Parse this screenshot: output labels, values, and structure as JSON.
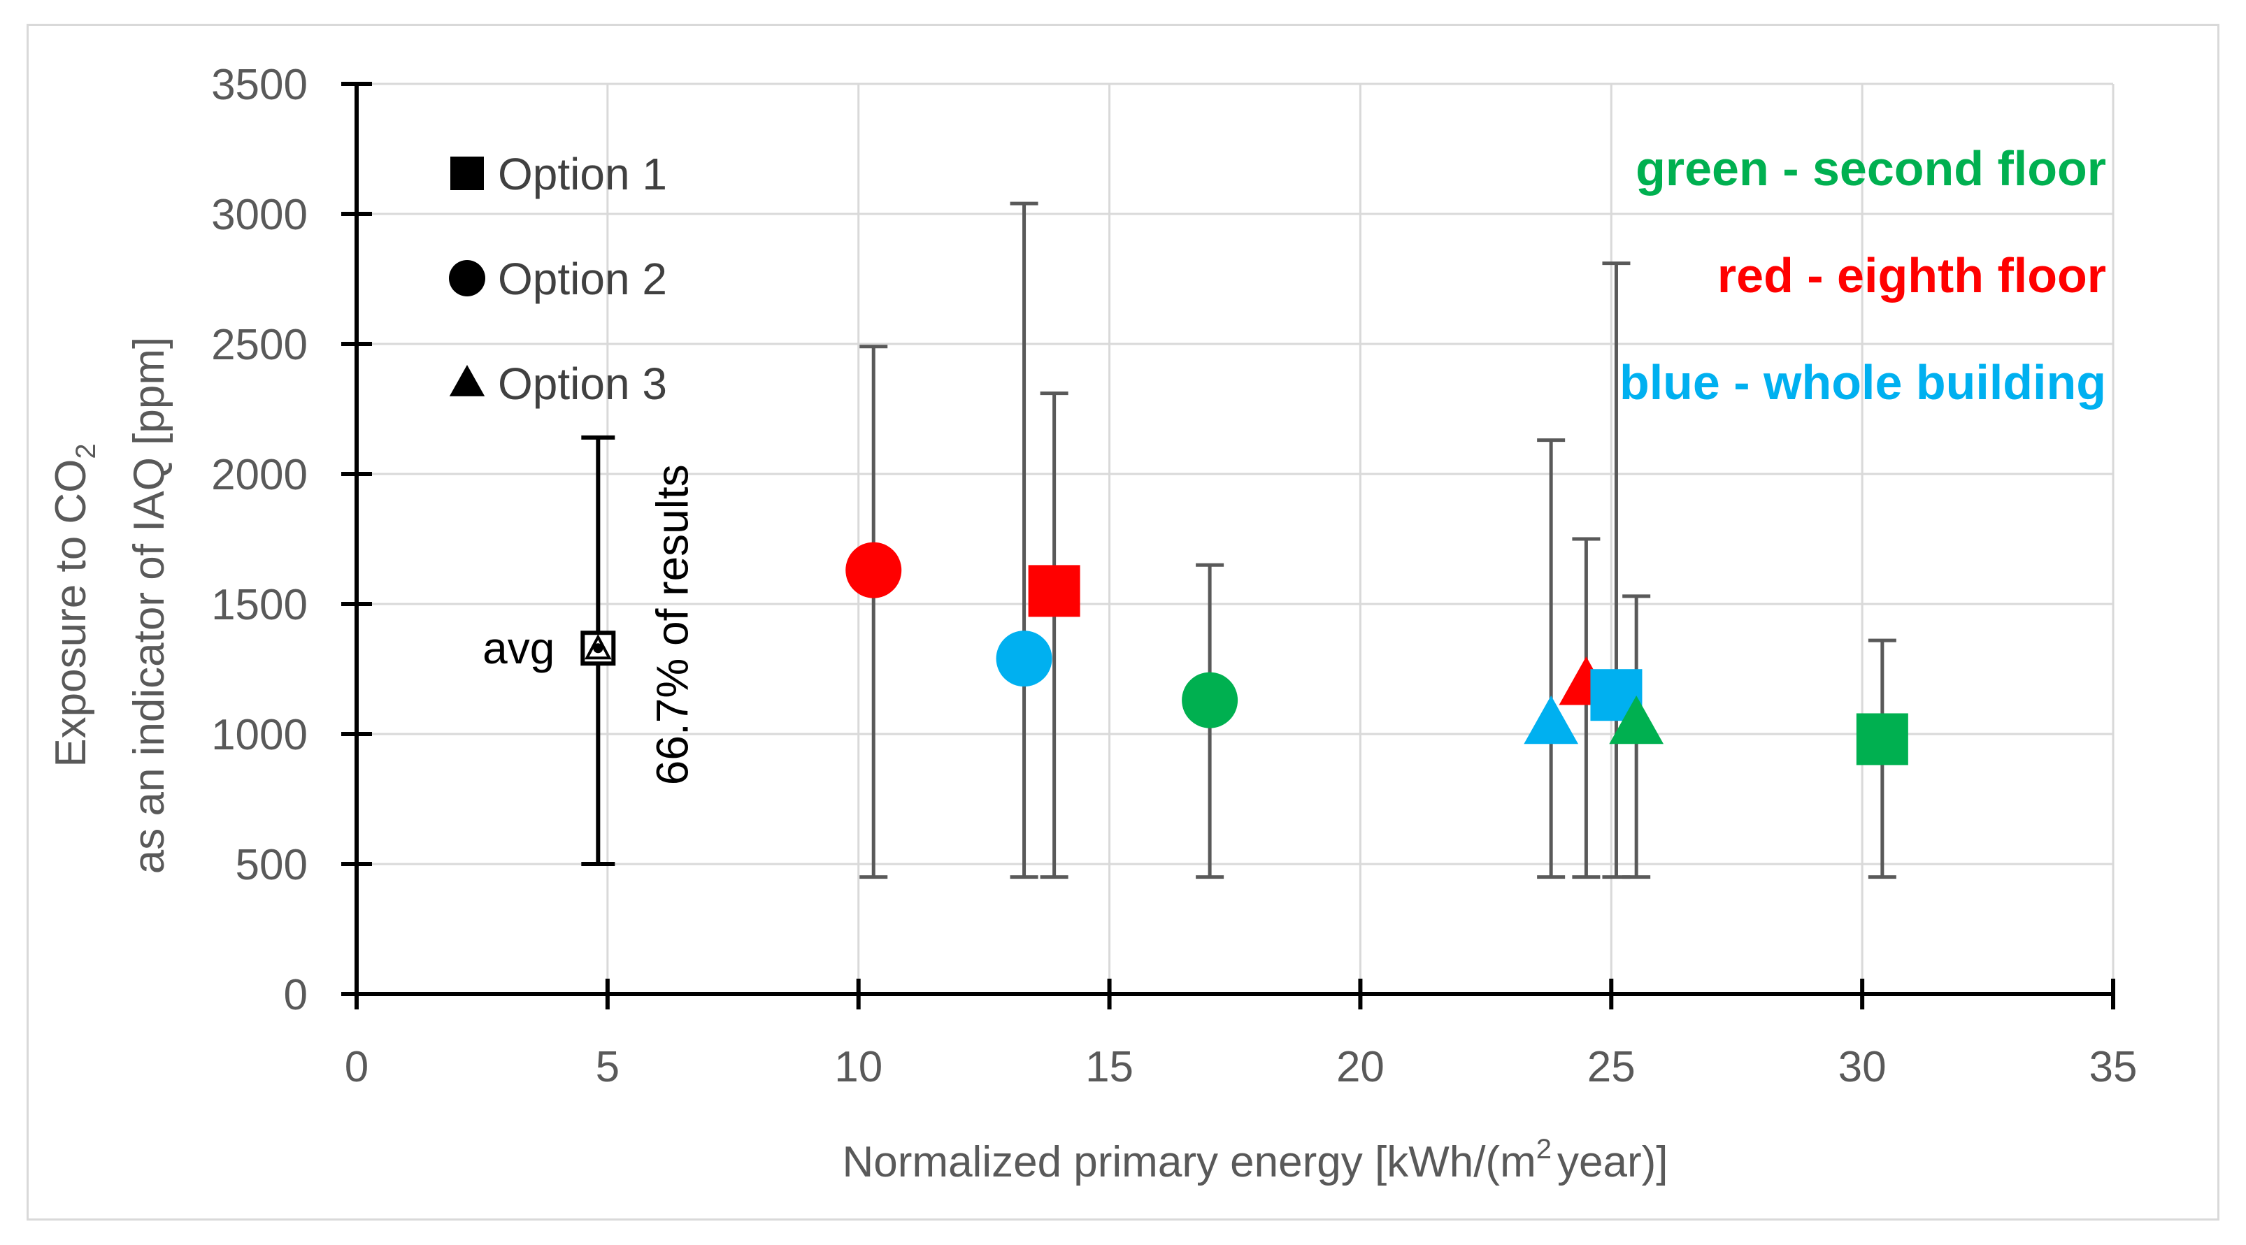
{
  "chart_data": {
    "type": "scatter",
    "xlabel_parts": [
      "Normalized primary energy [kWh/(m",
      "2",
      "year)]"
    ],
    "ylabel_line1_parts": [
      "Exposure to CO",
      "2"
    ],
    "ylabel_line2": "as an indicator of IAQ [ppm]",
    "xlim": [
      0,
      35
    ],
    "ylim": [
      0,
      3500
    ],
    "x_ticks": [
      0,
      5,
      10,
      15,
      20,
      25,
      30,
      35
    ],
    "y_ticks": [
      0,
      500,
      1000,
      1500,
      2000,
      2500,
      3000,
      3500
    ],
    "grid": true,
    "legend": [
      {
        "marker": "square",
        "label": "Option 1"
      },
      {
        "marker": "circle",
        "label": "Option 2"
      },
      {
        "marker": "triangle",
        "label": "Option 3"
      }
    ],
    "color_notes": [
      {
        "text": "green - second floor",
        "color": "#00b050"
      },
      {
        "text": "red - eighth floor",
        "color": "#ff0000"
      },
      {
        "text": "blue - whole building",
        "color": "#00b0f0"
      }
    ],
    "reference": {
      "x": 4.7,
      "avg": 1330,
      "low": 500,
      "high": 2140,
      "avg_label": "avg",
      "range_label": "66.7% of results"
    },
    "points": [
      {
        "name": "eighth-floor-option-2",
        "group": "eighth floor",
        "marker": "circle",
        "color": "#ff0000",
        "x": 10.3,
        "y": 1630,
        "low": 450,
        "high": 2490
      },
      {
        "name": "whole-building-option-2",
        "group": "whole building",
        "marker": "circle",
        "color": "#00b0f0",
        "x": 13.3,
        "y": 1290,
        "low": 450,
        "high": 3040
      },
      {
        "name": "eighth-floor-option-1",
        "group": "eighth floor",
        "marker": "square",
        "color": "#ff0000",
        "x": 13.9,
        "y": 1550,
        "low": 450,
        "high": 2310
      },
      {
        "name": "second-floor-option-2",
        "group": "second floor",
        "marker": "circle",
        "color": "#00b050",
        "x": 17.0,
        "y": 1130,
        "low": 450,
        "high": 1650
      },
      {
        "name": "whole-building-option-3",
        "group": "whole building",
        "marker": "triangle",
        "color": "#00b0f0",
        "x": 23.8,
        "y": 1040,
        "low": 450,
        "high": 2130
      },
      {
        "name": "eighth-floor-option-3",
        "group": "eighth floor",
        "marker": "triangle",
        "color": "#ff0000",
        "x": 24.5,
        "y": 1190,
        "low": 450,
        "high": 1750
      },
      {
        "name": "whole-building-option-1",
        "group": "whole building",
        "marker": "square",
        "color": "#00b0f0",
        "x": 25.1,
        "y": 1150,
        "low": 450,
        "high": 2810
      },
      {
        "name": "second-floor-option-3",
        "group": "second floor",
        "marker": "triangle",
        "color": "#00b050",
        "x": 25.5,
        "y": 1040,
        "low": 450,
        "high": 1530
      },
      {
        "name": "second-floor-option-1",
        "group": "second floor",
        "marker": "square",
        "color": "#00b050",
        "x": 30.4,
        "y": 980,
        "low": 450,
        "high": 1360
      }
    ]
  }
}
